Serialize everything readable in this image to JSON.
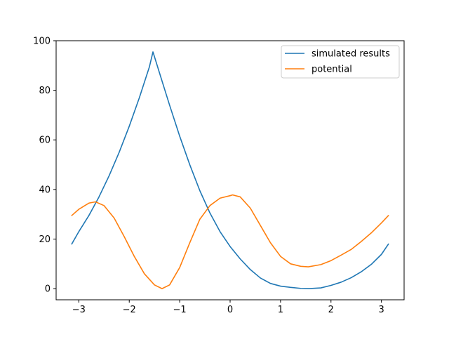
{
  "chart_data": {
    "type": "line",
    "title": "",
    "xlabel": "",
    "ylabel": "",
    "xlim": [
      -3.45,
      3.45
    ],
    "ylim": [
      -4.5,
      100
    ],
    "grid": false,
    "legend_position": "top-right",
    "xticks": [
      {
        "value": -3,
        "label": "−3"
      },
      {
        "value": -2,
        "label": "−2"
      },
      {
        "value": -1,
        "label": "−1"
      },
      {
        "value": 0,
        "label": "0"
      },
      {
        "value": 1,
        "label": "1"
      },
      {
        "value": 2,
        "label": "2"
      },
      {
        "value": 3,
        "label": "3"
      }
    ],
    "yticks": [
      {
        "value": 0,
        "label": "0"
      },
      {
        "value": 20,
        "label": "20"
      },
      {
        "value": 40,
        "label": "40"
      },
      {
        "value": 60,
        "label": "60"
      },
      {
        "value": 80,
        "label": "80"
      },
      {
        "value": 100,
        "label": "100"
      }
    ],
    "series": [
      {
        "name": "simulated results",
        "color": "#1f77b4",
        "x": [
          -3.14,
          -3.0,
          -2.8,
          -2.6,
          -2.4,
          -2.2,
          -2.0,
          -1.8,
          -1.6,
          -1.53,
          -1.4,
          -1.2,
          -1.0,
          -0.8,
          -0.6,
          -0.4,
          -0.2,
          0.0,
          0.2,
          0.4,
          0.6,
          0.8,
          1.0,
          1.2,
          1.4,
          1.57,
          1.8,
          2.0,
          2.2,
          2.4,
          2.6,
          2.8,
          3.0,
          3.14
        ],
        "y": [
          18,
          23,
          29.5,
          37,
          45.5,
          55,
          65.5,
          77,
          89.5,
          95.5,
          87,
          74,
          61.5,
          50,
          39.5,
          30.5,
          23,
          17,
          12,
          7.7,
          4.3,
          2.1,
          1.0,
          0.5,
          0.1,
          0,
          0.3,
          1.3,
          2.6,
          4.4,
          6.8,
          9.8,
          13.8,
          18
        ]
      },
      {
        "name": "potential",
        "color": "#ff7f0e",
        "x": [
          -3.14,
          -3.0,
          -2.8,
          -2.67,
          -2.5,
          -2.3,
          -2.1,
          -1.9,
          -1.7,
          -1.5,
          -1.35,
          -1.2,
          -1.0,
          -0.8,
          -0.6,
          -0.4,
          -0.2,
          0.0,
          0.05,
          0.2,
          0.4,
          0.6,
          0.8,
          1.0,
          1.2,
          1.4,
          1.55,
          1.8,
          2.0,
          2.2,
          2.4,
          2.6,
          2.8,
          3.0,
          3.14
        ],
        "y": [
          29.5,
          32,
          34.5,
          35,
          33.5,
          28.5,
          21,
          13,
          6,
          1.5,
          0,
          1.5,
          8.5,
          18.5,
          28,
          33.5,
          36.5,
          37.5,
          37.8,
          37,
          32.5,
          25.5,
          18.5,
          13,
          10,
          9,
          8.8,
          9.7,
          11.3,
          13.5,
          15.8,
          19,
          22.5,
          26.5,
          29.5
        ]
      }
    ]
  }
}
